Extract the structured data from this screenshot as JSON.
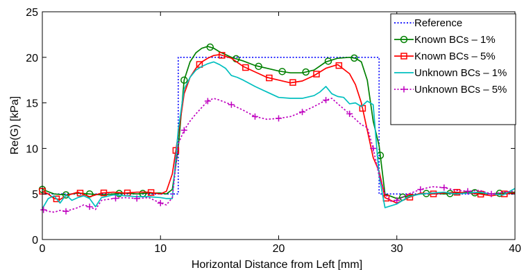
{
  "chart_data": {
    "type": "line",
    "title": "",
    "xlabel": "Horizontal Distance from Left [mm]",
    "ylabel": "Re(G) [kPa]",
    "xlim": [
      0,
      40
    ],
    "ylim": [
      0,
      25
    ],
    "xticks": [
      "0",
      "10",
      "20",
      "30",
      "40"
    ],
    "yticks": [
      "0",
      "5",
      "10",
      "15",
      "20",
      "25"
    ],
    "grid": false,
    "legend_position": "top-right",
    "series": [
      {
        "name": "Reference",
        "color": "#0000ff",
        "style": "dotted",
        "marker": "none",
        "x": [
          0,
          11.5,
          11.5,
          28.5,
          28.5,
          40
        ],
        "y": [
          5,
          5,
          20,
          20,
          5,
          5
        ]
      },
      {
        "name": "Known BCs – 1%",
        "color": "#008000",
        "style": "solid",
        "marker": "circle",
        "x": [
          0,
          1,
          2,
          3,
          4,
          5,
          6,
          7,
          8,
          9,
          10,
          10.5,
          11,
          11.5,
          12,
          12.5,
          13,
          13.5,
          14,
          14.5,
          15,
          16,
          17,
          18,
          19,
          20,
          21,
          22,
          23,
          24,
          25,
          26,
          26.5,
          27,
          27.5,
          28,
          28.5,
          29,
          30,
          31,
          32,
          33,
          34,
          35,
          36,
          37,
          38,
          39,
          40
        ],
        "y": [
          5.5,
          5.0,
          4.9,
          5.1,
          5.0,
          4.9,
          5.0,
          5.1,
          5.0,
          5.1,
          5.1,
          5.0,
          5.5,
          10.0,
          17.5,
          19.5,
          20.5,
          21.0,
          21.2,
          21.0,
          20.6,
          20.0,
          19.6,
          19.1,
          18.8,
          18.5,
          18.3,
          18.3,
          18.6,
          19.5,
          19.9,
          20.0,
          19.9,
          19.5,
          17.5,
          13.0,
          10.3,
          5.0,
          4.5,
          4.8,
          5.0,
          5.1,
          5.0,
          5.1,
          5.2,
          5.1,
          5.0,
          5.1,
          5.2
        ],
        "markers_at": [
          0,
          2,
          4,
          6.5,
          8.5,
          12,
          14.2,
          16.4,
          18.3,
          20.3,
          22.3,
          24.2,
          26.4,
          28.6,
          30.5,
          32.5,
          34.5,
          36.6,
          38.7
        ]
      },
      {
        "name": "Known BCs – 5%",
        "color": "#ff0000",
        "style": "solid",
        "marker": "square",
        "x": [
          0,
          0.5,
          1,
          1.5,
          2,
          3,
          4,
          5,
          6,
          7,
          8,
          9,
          10,
          10.5,
          11,
          11.5,
          12,
          12.5,
          13,
          13.5,
          14,
          14.5,
          15,
          16,
          17,
          18,
          19,
          20,
          21,
          22,
          23,
          24,
          25,
          26,
          26.5,
          27,
          27.5,
          28,
          28.5,
          29,
          30,
          31,
          32,
          33,
          34,
          35,
          36,
          37,
          38,
          39,
          40
        ],
        "y": [
          5.3,
          5.0,
          4.5,
          4.4,
          4.8,
          5.2,
          4.7,
          5.1,
          5.2,
          5.1,
          5.2,
          5.2,
          5.0,
          5.3,
          7.2,
          11.5,
          16.0,
          17.8,
          18.8,
          19.5,
          19.9,
          20.2,
          20.3,
          19.9,
          19.0,
          18.4,
          17.8,
          17.5,
          17.2,
          17.4,
          18.0,
          18.8,
          19.2,
          18.2,
          17.0,
          15.0,
          12.0,
          9.0,
          7.5,
          4.6,
          4.0,
          4.6,
          5.1,
          5.0,
          5.1,
          5.2,
          5.1,
          5.0,
          4.8,
          5.0,
          5.1
        ],
        "markers_at": [
          0,
          1.2,
          3.2,
          5.2,
          7.2,
          9.2,
          11.3,
          13.3,
          15.2,
          17.2,
          19.2,
          21.2,
          23.2,
          25.1,
          27.1,
          29.1,
          31.1,
          33.1,
          35.1,
          37.1,
          39.1
        ]
      },
      {
        "name": "Unknown BCs – 1%",
        "color": "#00bfbf",
        "style": "solid",
        "marker": "none",
        "x": [
          0,
          0.5,
          1,
          1.5,
          2,
          2.5,
          3,
          3.5,
          4,
          4.5,
          5,
          6,
          7,
          8,
          9,
          10,
          10.5,
          11,
          11.5,
          12,
          12.5,
          13,
          13.5,
          14,
          14.5,
          15,
          15.5,
          16,
          16.5,
          17,
          18,
          19,
          20,
          21,
          22,
          23,
          23.5,
          24,
          24.5,
          25,
          25.5,
          26,
          26.5,
          27,
          27.5,
          28,
          28.5,
          29,
          30,
          31,
          32,
          33,
          34,
          35,
          36,
          37,
          38,
          39,
          40
        ],
        "y": [
          3.4,
          4.5,
          4.8,
          4.0,
          4.9,
          4.3,
          4.6,
          4.8,
          4.5,
          3.6,
          4.6,
          4.9,
          4.8,
          4.7,
          4.7,
          4.6,
          4.5,
          4.5,
          12.0,
          16.5,
          17.8,
          18.6,
          19.0,
          19.3,
          19.5,
          19.2,
          18.8,
          18.0,
          17.8,
          17.5,
          16.8,
          16.2,
          15.6,
          15.5,
          15.5,
          15.8,
          16.2,
          16.8,
          16.0,
          15.7,
          15.6,
          14.9,
          15.0,
          14.6,
          15.2,
          14.8,
          7.0,
          3.5,
          3.9,
          4.7,
          5.0,
          5.1,
          5.2,
          5.0,
          5.1,
          5.2,
          5.0,
          4.9,
          5.6
        ]
      },
      {
        "name": "Unknown BCs – 5%",
        "color": "#bf00bf",
        "style": "dotted",
        "marker": "plus",
        "x": [
          0,
          0.5,
          1,
          1.5,
          2,
          2.5,
          3,
          3.5,
          4,
          4.5,
          5,
          6,
          7,
          8,
          9,
          10,
          10.5,
          11,
          11.5,
          12,
          12.5,
          13,
          13.5,
          14,
          14.5,
          15,
          16,
          17,
          18,
          19,
          20,
          21,
          22,
          23,
          24,
          24.5,
          25,
          26,
          27,
          27.5,
          28,
          28.5,
          29,
          29.5,
          30,
          31,
          32,
          33,
          34,
          35,
          36,
          37,
          38,
          39,
          40
        ],
        "y": [
          3.3,
          3.1,
          3.0,
          3.2,
          3.1,
          3.3,
          3.5,
          3.8,
          3.6,
          3.3,
          4.3,
          4.5,
          4.6,
          4.5,
          4.6,
          4.0,
          3.8,
          4.6,
          10.5,
          12.0,
          13.0,
          13.8,
          14.5,
          15.2,
          15.5,
          15.3,
          14.8,
          14.2,
          13.5,
          13.2,
          13.3,
          13.5,
          14.0,
          14.6,
          15.3,
          15.5,
          14.9,
          13.8,
          12.6,
          12.3,
          10.0,
          7.0,
          5.0,
          4.2,
          4.3,
          5.0,
          5.5,
          5.8,
          5.7,
          5.4,
          5.3,
          5.4,
          5.0,
          5.2,
          5.3
        ],
        "markers_at": [
          0.1,
          2,
          4,
          6.2,
          8,
          10,
          12,
          14,
          16,
          18,
          20,
          22,
          24,
          26,
          28,
          30,
          32,
          34,
          36,
          38
        ]
      }
    ]
  }
}
